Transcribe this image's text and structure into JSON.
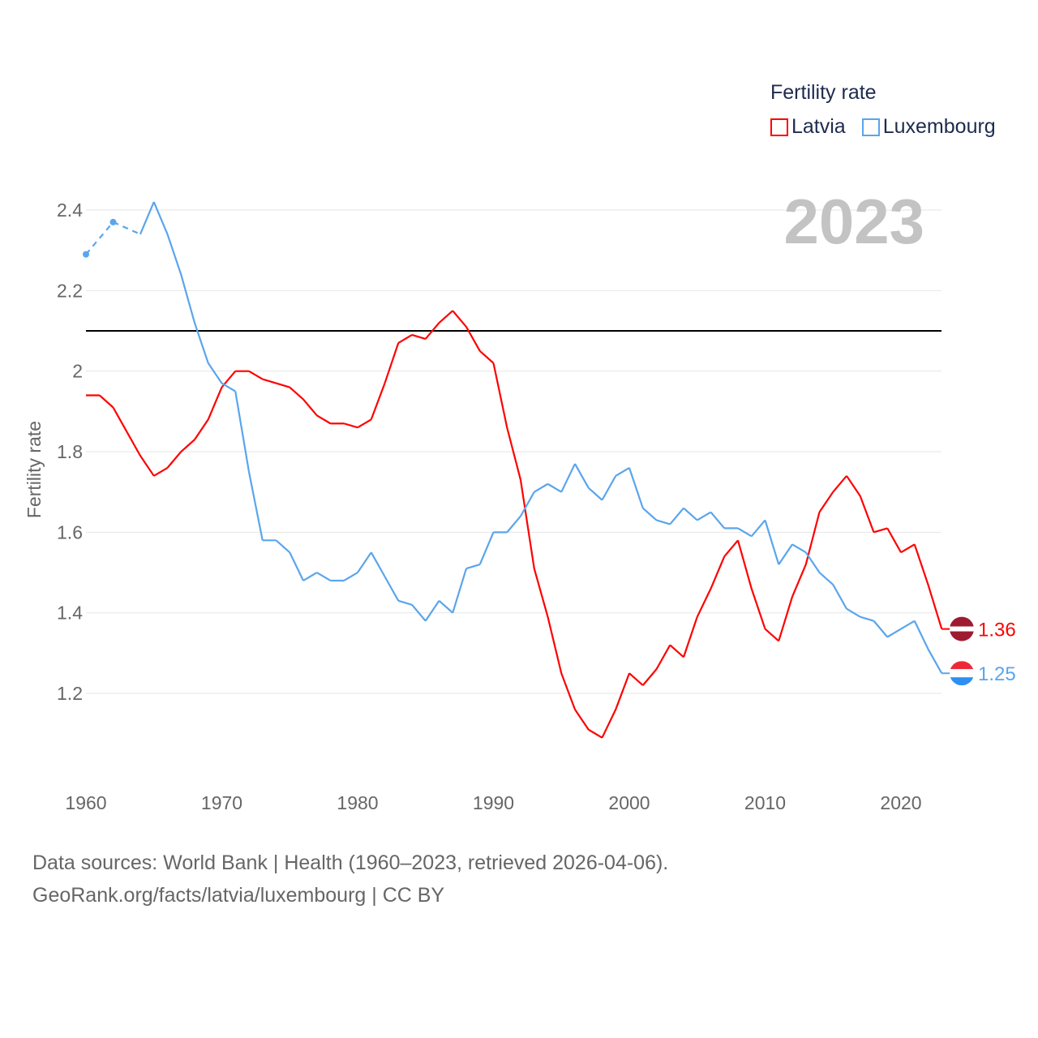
{
  "chart_data": {
    "type": "line",
    "title": "",
    "ylabel": "Fertility rate",
    "xlabel": "",
    "xlim": [
      1960,
      2023
    ],
    "ylim": [
      1.0,
      2.5
    ],
    "yticks": [
      1.2,
      1.4,
      1.6,
      1.8,
      2,
      2.2,
      2.4
    ],
    "ytick_labels": [
      "1.2",
      "1.4",
      "1.6",
      "1.8",
      "2",
      "2.2",
      "2.4"
    ],
    "xticks": [
      1960,
      1970,
      1980,
      1990,
      2000,
      2010,
      2020
    ],
    "xtick_labels": [
      "1960",
      "1970",
      "1980",
      "1990",
      "2000",
      "2010",
      "2020"
    ],
    "grid": true,
    "reference_line": 2.1,
    "legend_title": "Fertility rate",
    "legend_placement": "top-right",
    "year_label": "2023",
    "series": [
      {
        "name": "Latvia",
        "color": "#ff0000",
        "end_label": "1.36",
        "flag_colors": [
          "#9e1b32",
          "#ffffff",
          "#9e1b32"
        ],
        "x_start": 1960,
        "values": [
          1.94,
          1.94,
          1.91,
          1.85,
          1.79,
          1.74,
          1.76,
          1.8,
          1.83,
          1.88,
          1.96,
          2.0,
          2.0,
          1.98,
          1.97,
          1.96,
          1.93,
          1.89,
          1.87,
          1.87,
          1.86,
          1.88,
          1.97,
          2.07,
          2.09,
          2.08,
          2.12,
          2.15,
          2.11,
          2.05,
          2.02,
          1.86,
          1.73,
          1.51,
          1.39,
          1.25,
          1.16,
          1.11,
          1.09,
          1.16,
          1.25,
          1.22,
          1.26,
          1.32,
          1.29,
          1.39,
          1.46,
          1.54,
          1.58,
          1.46,
          1.36,
          1.33,
          1.44,
          1.52,
          1.65,
          1.7,
          1.74,
          1.69,
          1.6,
          1.61,
          1.55,
          1.57,
          1.47,
          1.36
        ]
      },
      {
        "name": "Luxembourg",
        "color": "#5aa5ec",
        "end_label": "1.25",
        "flag_colors": [
          "#ed2939",
          "#ffffff",
          "#2e8ff2"
        ],
        "x_start": 1960,
        "values": [
          2.29,
          null,
          2.37,
          null,
          2.34,
          2.42,
          2.34,
          2.24,
          2.12,
          2.02,
          1.97,
          1.95,
          1.75,
          1.58,
          1.58,
          1.55,
          1.48,
          1.5,
          1.48,
          1.48,
          1.5,
          1.55,
          1.49,
          1.43,
          1.42,
          1.38,
          1.43,
          1.4,
          1.51,
          1.52,
          1.6,
          1.6,
          1.64,
          1.7,
          1.72,
          1.7,
          1.77,
          1.71,
          1.68,
          1.74,
          1.76,
          1.66,
          1.63,
          1.62,
          1.66,
          1.63,
          1.65,
          1.61,
          1.61,
          1.59,
          1.63,
          1.52,
          1.57,
          1.55,
          1.5,
          1.47,
          1.41,
          1.39,
          1.38,
          1.34,
          1.36,
          1.38,
          1.31,
          1.25
        ]
      }
    ]
  },
  "footer": {
    "line1": "Data sources: World Bank | Health (1960–2023, retrieved 2026-04-06).",
    "line2": "GeoRank.org/facts/latvia/luxembourg | CC BY"
  }
}
